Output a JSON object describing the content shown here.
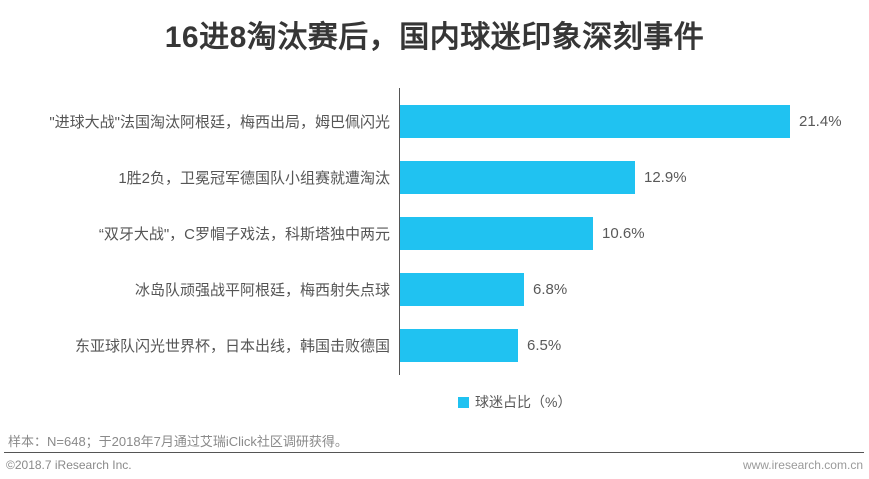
{
  "title": "16进8淘汰赛后，国内球迷印象深刻事件",
  "chart_data": {
    "type": "bar",
    "orientation": "horizontal",
    "title": "16进8淘汰赛后，国内球迷印象深刻事件",
    "categories": [
      "\"进球大战\"法国淘汰阿根廷，梅西出局，姆巴佩闪光",
      "1胜2负，卫冕冠军德国队小组赛就遭淘汰",
      "“双牙大战\"，C罗帽子戏法，科斯塔独中两元",
      "冰岛队顽强战平阿根廷，梅西射失点球",
      "东亚球队闪光世界杯，日本出线，韩国击败德国"
    ],
    "values": [
      21.4,
      12.9,
      10.6,
      6.8,
      6.5
    ],
    "value_labels": [
      "21.4%",
      "12.9%",
      "10.6%",
      "6.8%",
      "6.5%"
    ],
    "xlim": [
      0,
      23.5
    ],
    "grid": "off",
    "legend_position": "bottom",
    "legend": [
      {
        "label": "球迷占比（%）",
        "color": "#20C2F1"
      }
    ],
    "bar_color": "#20C2F1"
  },
  "footnote": "样本：N=648；于2018年7月通过艾瑞iClick社区调研获得。",
  "footer": {
    "copyright": "©2018.7 iResearch Inc.",
    "website": "www.iresearch.com.cn"
  }
}
